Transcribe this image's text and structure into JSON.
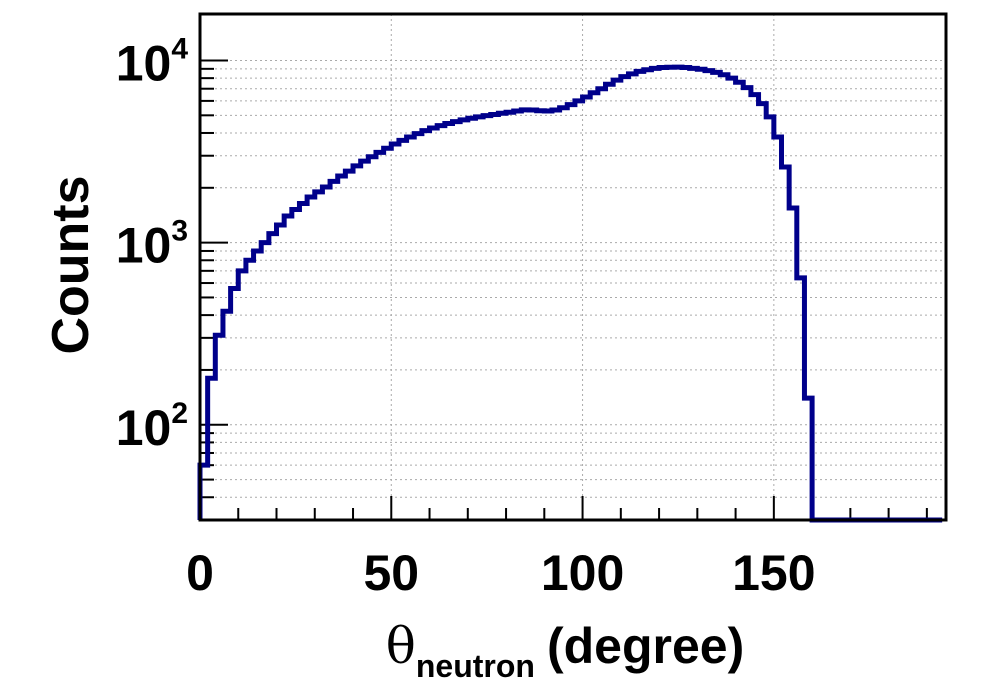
{
  "chart_data": {
    "type": "histogram",
    "xlabel_symbol": "θ",
    "xlabel_subscript": "neutron",
    "xlabel_suffix": "(degree)",
    "ylabel": "Counts",
    "xlim": [
      0,
      195
    ],
    "ylim": [
      30,
      18000
    ],
    "yscale": "log",
    "grid": true,
    "line_color": "#00008b",
    "x_ticks": [
      "0",
      "50",
      "100",
      "150"
    ],
    "x_tick_values": [
      0,
      50,
      100,
      150
    ],
    "y_ticks": [
      {
        "base": "10",
        "exp": "2",
        "value": 100
      },
      {
        "base": "10",
        "exp": "3",
        "value": 1000
      },
      {
        "base": "10",
        "exp": "4",
        "value": 10000
      }
    ],
    "bin_width": 2,
    "bins_start": 0,
    "values": [
      60,
      180,
      310,
      420,
      560,
      700,
      800,
      900,
      1000,
      1120,
      1250,
      1400,
      1520,
      1640,
      1780,
      1900,
      2020,
      2170,
      2320,
      2470,
      2640,
      2800,
      2960,
      3130,
      3300,
      3480,
      3640,
      3800,
      3970,
      4120,
      4260,
      4390,
      4510,
      4620,
      4720,
      4820,
      4900,
      4980,
      5050,
      5130,
      5200,
      5280,
      5360,
      5350,
      5300,
      5280,
      5350,
      5500,
      5720,
      6000,
      6300,
      6650,
      7000,
      7400,
      7800,
      8150,
      8450,
      8720,
      8900,
      9050,
      9150,
      9180,
      9200,
      9150,
      9050,
      8950,
      8800,
      8600,
      8350,
      8000,
      7600,
      7100,
      6500,
      5800,
      4900,
      3800,
      2600,
      1550,
      640,
      140,
      0,
      0,
      0,
      0,
      0,
      0,
      0,
      0,
      0,
      0,
      0,
      0,
      0,
      0,
      0,
      0,
      0
    ]
  }
}
